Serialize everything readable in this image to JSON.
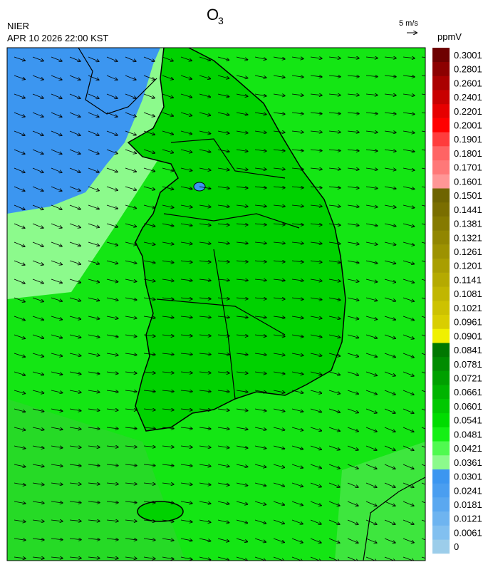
{
  "header": {
    "title": "O",
    "title_subscript": "3",
    "agency": "NIER",
    "datetime": "APR 10 2026 22:00 KST",
    "vector_scale": "5 m/s"
  },
  "colorbar": {
    "unit": "ppmV",
    "levels": [
      0,
      0.0061,
      0.0121,
      0.0181,
      0.0241,
      0.0301,
      0.0361,
      0.0421,
      0.0481,
      0.0541,
      0.0601,
      0.0661,
      0.0721,
      0.0781,
      0.0841,
      0.0901,
      0.0961,
      0.1021,
      0.1081,
      0.1141,
      0.1201,
      0.1261,
      0.1321,
      0.1381,
      0.1441,
      0.1501,
      0.1601,
      0.1701,
      0.1801,
      0.1901,
      0.2001,
      0.2201,
      0.2401,
      0.2601,
      0.2801,
      0.3001
    ],
    "colors": [
      "#9ccdea",
      "#82c0f0",
      "#6eb4f0",
      "#5aa8f0",
      "#4a9ef0",
      "#3c96f0",
      "#8cfa8c",
      "#50fa50",
      "#14f014",
      "#00dc00",
      "#00c800",
      "#00b400",
      "#00a000",
      "#008c00",
      "#007800",
      "#f0f000",
      "#d9ce00",
      "#cdc200",
      "#c1b600",
      "#b5aa00",
      "#a99e00",
      "#9d9200",
      "#918600",
      "#857a00",
      "#7a6e00",
      "#6e6400",
      "#ff9696",
      "#ff7878",
      "#ff6464",
      "#ff3c3c",
      "#ff0000",
      "#e60000",
      "#c80000",
      "#aa0000",
      "#8c0000",
      "#6e0000"
    ]
  }
}
